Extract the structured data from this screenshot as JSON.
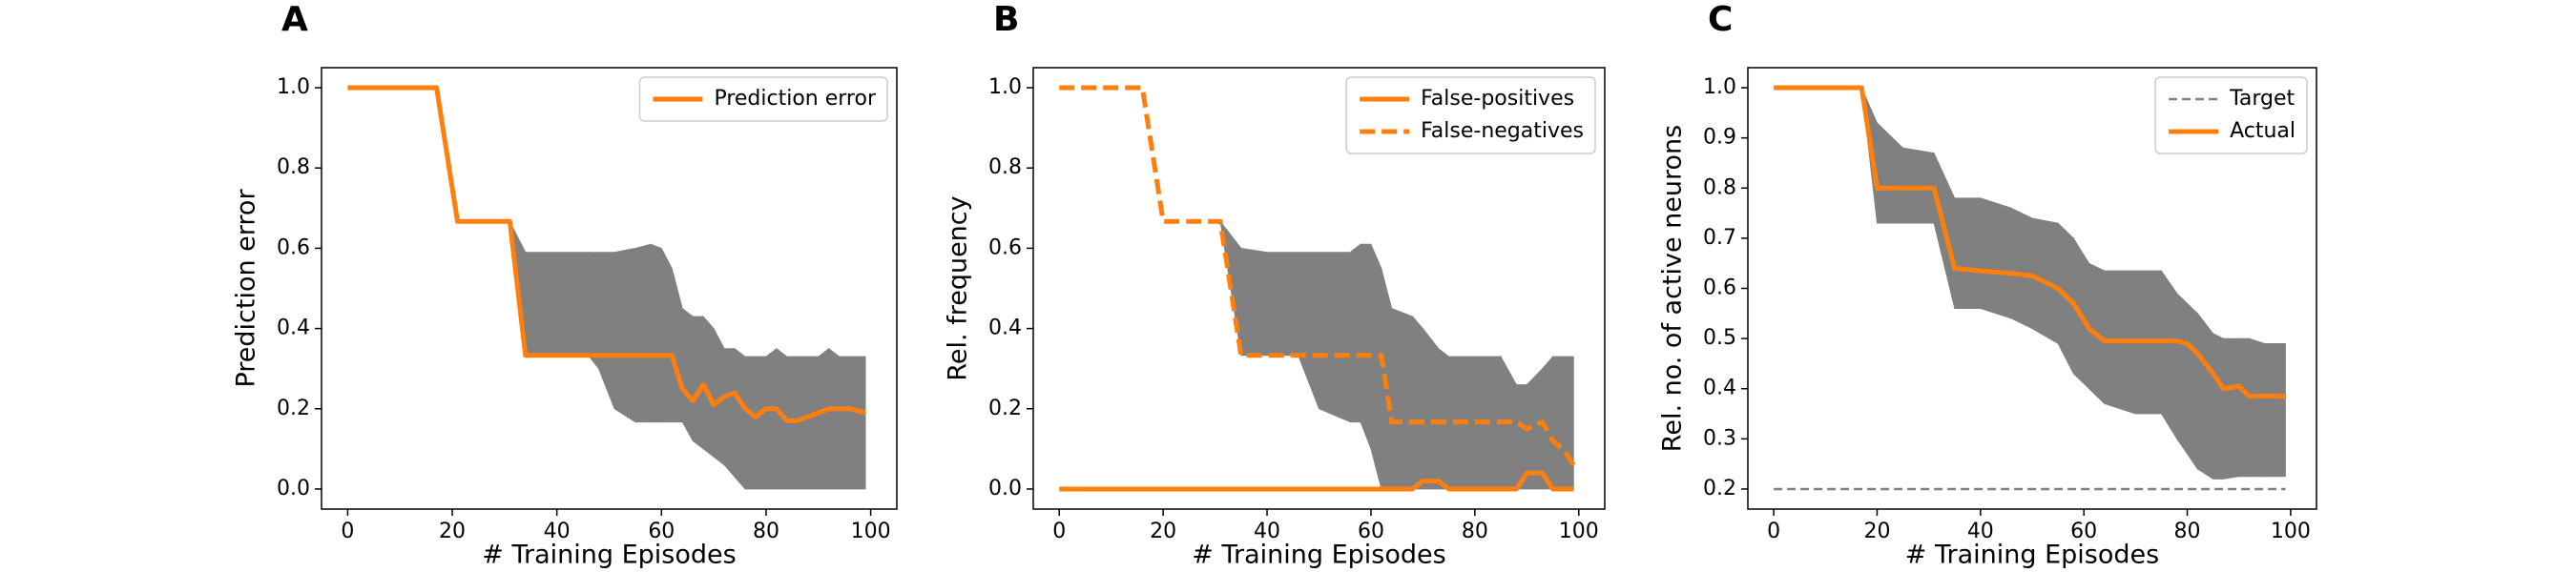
{
  "chart_data": [
    {
      "type": "line",
      "panel": "A",
      "ylabel": "Prediction error",
      "xlabel": "# Training Episodes",
      "xlim": [
        -5,
        105
      ],
      "ylim": [
        -0.05,
        1.05
      ],
      "xticks": [
        0,
        20,
        40,
        60,
        80,
        100
      ],
      "yticks": [
        {
          "value": 0,
          "label": "0.0"
        },
        0.2,
        0.4,
        0.6,
        0.8,
        {
          "value": 1,
          "label": "1.0"
        }
      ],
      "legend": "upper right",
      "x": [
        0,
        17,
        21,
        31,
        34,
        40,
        46,
        48,
        51,
        55,
        58,
        60,
        62,
        64,
        66,
        68,
        70,
        72,
        74,
        76,
        78,
        80,
        82,
        84,
        86,
        88,
        90,
        92,
        94,
        96,
        99
      ],
      "series": [
        {
          "name": "Prediction error",
          "color": "#ff7f0e",
          "style": "solid",
          "values": [
            1,
            1,
            0.667,
            0.667,
            0.333,
            0.333,
            0.333,
            0.333,
            0.333,
            0.333,
            0.333,
            0.333,
            0.333,
            0.25,
            0.22,
            0.26,
            0.21,
            0.23,
            0.24,
            0.2,
            0.18,
            0.2,
            0.2,
            0.17,
            0.17,
            0.18,
            0.19,
            0.2,
            0.2,
            0.2,
            0.19
          ]
        }
      ],
      "band": {
        "color": "#808080",
        "upper": [
          null,
          null,
          null,
          0.667,
          0.59,
          0.59,
          0.59,
          0.59,
          0.59,
          0.6,
          0.61,
          0.6,
          0.55,
          0.45,
          0.43,
          0.43,
          0.4,
          0.35,
          0.35,
          0.33,
          0.33,
          0.33,
          0.35,
          0.33,
          0.33,
          0.33,
          0.33,
          0.35,
          0.33,
          0.33,
          0.33
        ],
        "lower": [
          null,
          null,
          null,
          0.667,
          0.333,
          0.333,
          0.333,
          0.3,
          0.2,
          0.167,
          0.167,
          0.167,
          0.167,
          0.167,
          0.12,
          0.1,
          0.08,
          0.06,
          0.03,
          0,
          0,
          0,
          0,
          0,
          0,
          0,
          0,
          0,
          0,
          0,
          0
        ]
      }
    },
    {
      "type": "line",
      "panel": "B",
      "ylabel": "Rel. frequency",
      "xlabel": "# Training Episodes",
      "xlim": [
        -5,
        105
      ],
      "ylim": [
        -0.05,
        1.05
      ],
      "xticks": [
        0,
        20,
        40,
        60,
        80,
        100
      ],
      "yticks": [
        {
          "value": 0,
          "label": "0.0"
        },
        0.2,
        0.4,
        0.6,
        0.8,
        {
          "value": 1,
          "label": "1.0"
        }
      ],
      "legend": "upper right",
      "x": [
        0,
        16,
        20,
        31,
        35,
        40,
        46,
        50,
        56,
        58,
        60,
        62,
        64,
        68,
        70,
        73,
        75,
        80,
        85,
        88,
        90,
        93,
        95,
        97,
        99
      ],
      "series": [
        {
          "name": "False-positives",
          "color": "#ff7f0e",
          "style": "solid",
          "values": [
            0,
            0,
            0,
            0,
            0,
            0,
            0,
            0,
            0,
            0,
            0,
            0,
            0,
            0,
            0.02,
            0.02,
            0,
            0,
            0,
            0,
            0.04,
            0.04,
            0,
            0,
            0
          ]
        },
        {
          "name": "False-negatives",
          "color": "#ff7f0e",
          "style": "dashed",
          "values": [
            1,
            1,
            0.667,
            0.667,
            0.333,
            0.333,
            0.333,
            0.333,
            0.333,
            0.333,
            0.333,
            0.333,
            0.167,
            0.167,
            0.167,
            0.167,
            0.167,
            0.167,
            0.167,
            0.167,
            0.15,
            0.167,
            0.12,
            0.1,
            0.06
          ]
        }
      ],
      "band": {
        "color": "#808080",
        "upper": [
          null,
          null,
          null,
          0.667,
          0.6,
          0.59,
          0.59,
          0.59,
          0.59,
          0.61,
          0.61,
          0.55,
          0.45,
          0.43,
          0.4,
          0.35,
          0.33,
          0.33,
          0.33,
          0.26,
          0.26,
          0.3,
          0.33,
          0.33,
          0.33
        ],
        "lower": [
          null,
          null,
          null,
          0.667,
          0.333,
          0.333,
          0.333,
          0.2,
          0.167,
          0.167,
          0.1,
          0,
          0,
          0,
          0,
          0,
          0,
          0,
          0,
          0,
          0,
          0,
          0,
          0,
          0
        ]
      }
    },
    {
      "type": "line",
      "panel": "C",
      "ylabel": "Rel. no. of active neurons",
      "xlabel": "# Training Episodes",
      "xlim": [
        -5,
        105
      ],
      "ylim": [
        0.16,
        1.04
      ],
      "xticks": [
        0,
        20,
        40,
        60,
        80,
        100
      ],
      "yticks": [
        0.2,
        0.3,
        0.4,
        0.5,
        0.6,
        0.7,
        0.8,
        0.9,
        {
          "value": 1,
          "label": "1.0"
        }
      ],
      "legend": "upper right",
      "x": [
        0,
        17,
        20,
        25,
        31,
        35,
        40,
        46,
        50,
        55,
        58,
        61,
        64,
        70,
        75,
        78,
        80,
        82,
        85,
        87,
        90,
        92,
        95,
        99
      ],
      "series": [
        {
          "name": "Target",
          "color": "#808080",
          "style": "thin-dashed",
          "values": [
            0.2,
            0.2,
            0.2,
            0.2,
            0.2,
            0.2,
            0.2,
            0.2,
            0.2,
            0.2,
            0.2,
            0.2,
            0.2,
            0.2,
            0.2,
            0.2,
            0.2,
            0.2,
            0.2,
            0.2,
            0.2,
            0.2,
            0.2,
            0.2
          ]
        },
        {
          "name": "Actual",
          "color": "#ff7f0e",
          "style": "solid",
          "values": [
            1,
            1,
            0.8,
            0.8,
            0.8,
            0.64,
            0.635,
            0.63,
            0.625,
            0.6,
            0.57,
            0.52,
            0.495,
            0.495,
            0.495,
            0.495,
            0.49,
            0.47,
            0.43,
            0.4,
            0.405,
            0.385,
            0.385,
            0.385
          ]
        }
      ],
      "band": {
        "color": "#808080",
        "upper": [
          null,
          1,
          0.93,
          0.88,
          0.87,
          0.78,
          0.78,
          0.76,
          0.74,
          0.73,
          0.7,
          0.65,
          0.635,
          0.635,
          0.635,
          0.59,
          0.57,
          0.55,
          0.51,
          0.5,
          0.5,
          0.5,
          0.49,
          0.49
        ],
        "lower": [
          null,
          1,
          0.73,
          0.73,
          0.73,
          0.56,
          0.56,
          0.54,
          0.52,
          0.49,
          0.43,
          0.4,
          0.37,
          0.35,
          0.35,
          0.3,
          0.27,
          0.24,
          0.22,
          0.22,
          0.225,
          0.225,
          0.225,
          0.225
        ]
      }
    }
  ]
}
